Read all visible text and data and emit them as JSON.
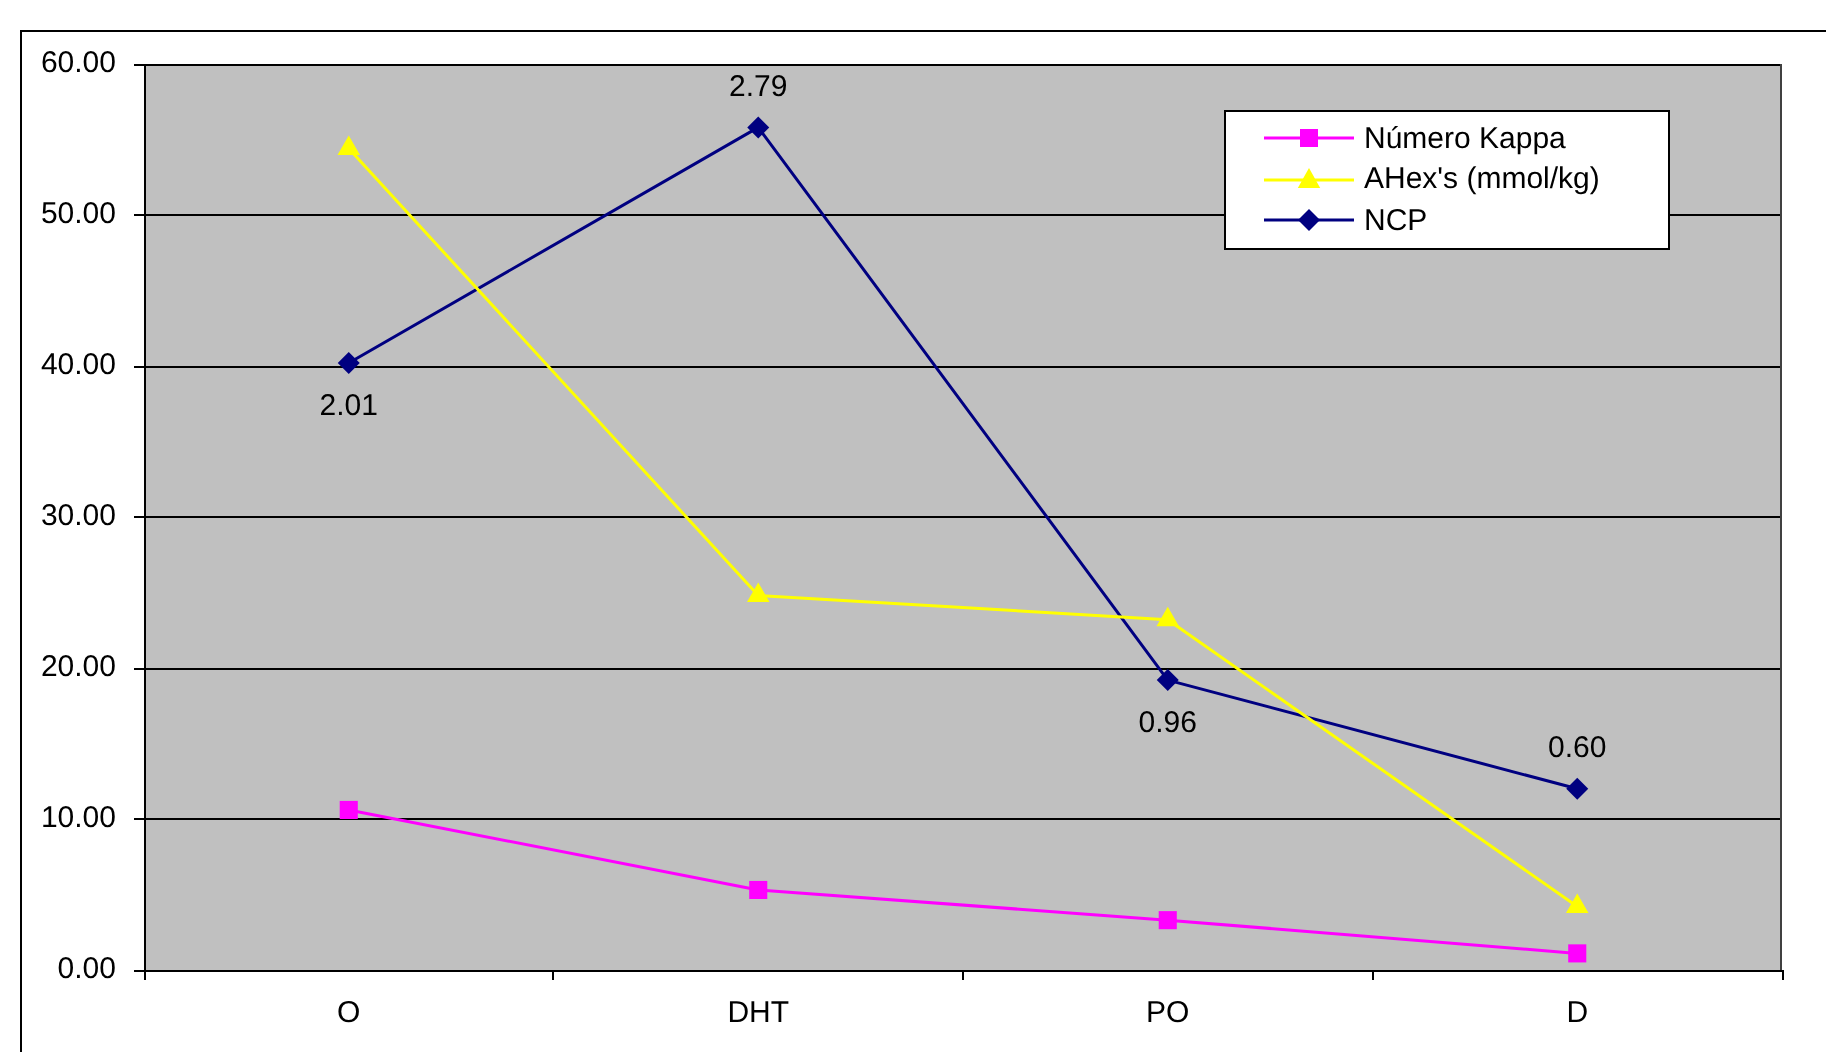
{
  "chart_data": {
    "type": "line",
    "categories": [
      "O",
      "DHT",
      "PO",
      "D"
    ],
    "series": [
      {
        "name": "Número Kappa",
        "color": "#ff00ff",
        "marker": "square",
        "values": [
          10.6,
          5.3,
          3.3,
          1.1
        ]
      },
      {
        "name": "AHex's (mmol/kg)",
        "color": "#ffff00",
        "marker": "triangle",
        "values": [
          54.4,
          24.8,
          23.2,
          4.2
        ]
      },
      {
        "name": "NCP",
        "color": "#000080",
        "marker": "diamond",
        "axis": "y2",
        "values": [
          2.01,
          2.79,
          0.96,
          0.6
        ],
        "value_labels": [
          "2.01",
          "2.79",
          "0.96",
          "0.60"
        ]
      }
    ],
    "ylim": [
      0,
      60
    ],
    "yticks": [
      {
        "value": 0,
        "label": "0.00"
      },
      {
        "value": 10,
        "label": "10.00"
      },
      {
        "value": 20,
        "label": "20.00"
      },
      {
        "value": 30,
        "label": "30.00"
      },
      {
        "value": 40,
        "label": "40.00"
      },
      {
        "value": 50,
        "label": "50.00"
      },
      {
        "value": 60,
        "label": "60.00"
      }
    ],
    "y2lim": [
      0,
      3
    ],
    "grid": "y",
    "legend": "top right"
  }
}
